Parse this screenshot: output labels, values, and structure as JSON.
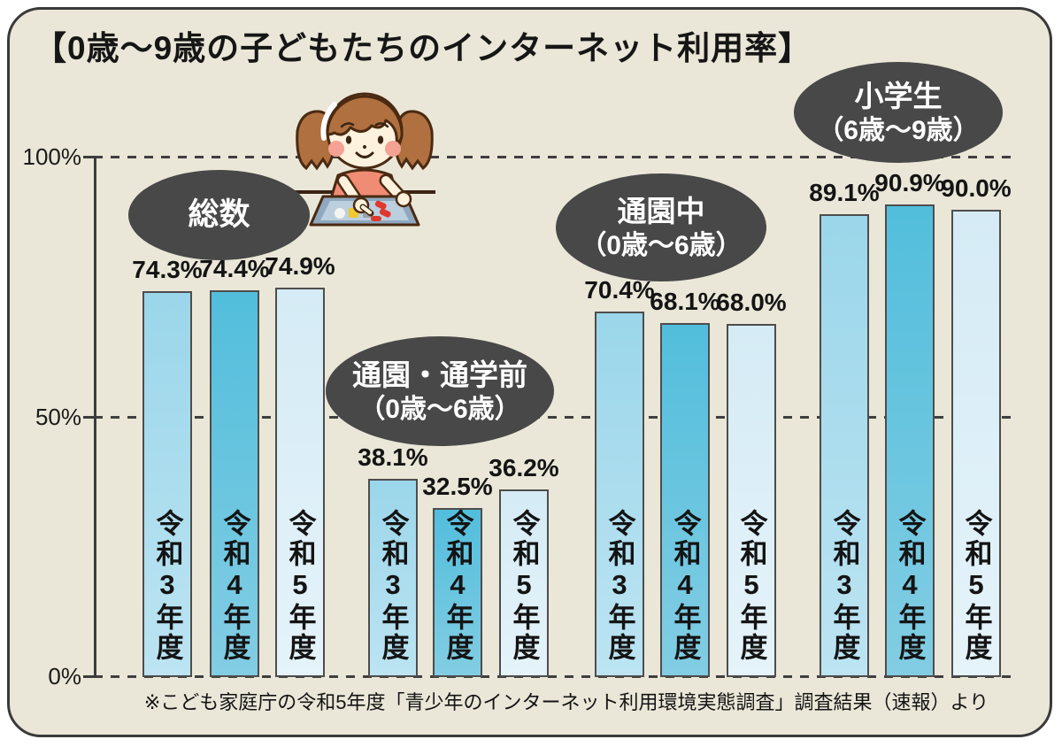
{
  "colors": {
    "page_background": "#ffffff",
    "panel_background": "#eae7d8",
    "panel_border": "#3a3a3a",
    "badge_background": "#484848",
    "badge_text": "#ffffff",
    "axis": "#3c3c3c",
    "bar_border": "#4d4d4d",
    "text": "#141414",
    "year_bar_top": [
      "#9bd6ea",
      "#52bedc",
      "#d5ebf5"
    ],
    "year_bar_bottom": [
      "#bce4f2",
      "#82cde3",
      "#e5f3fa"
    ]
  },
  "chart_data": {
    "type": "bar",
    "title": "【0歳〜9歳の子どもたちのインターネット利用率】",
    "categories": [
      "令和3年度",
      "令和4年度",
      "令和5年度"
    ],
    "groups": [
      {
        "label": "総数",
        "sublabel": "",
        "values": [
          74.3,
          74.4,
          74.9
        ],
        "value_labels": [
          "74.3%",
          "74.4%",
          "74.9%"
        ]
      },
      {
        "label": "通園・通学前",
        "sublabel": "（0歳〜6歳）",
        "values": [
          38.1,
          32.5,
          36.2
        ],
        "value_labels": [
          "38.1%",
          "32.5%",
          "36.2%"
        ]
      },
      {
        "label": "通園中",
        "sublabel": "（0歳〜6歳）",
        "values": [
          70.4,
          68.1,
          68.0
        ],
        "value_labels": [
          "70.4%",
          "68.1%",
          "68.0%"
        ]
      },
      {
        "label": "小学生",
        "sublabel": "（6歳〜9歳）",
        "values": [
          89.1,
          90.9,
          90.0
        ],
        "value_labels": [
          "89.1%",
          "90.9%",
          "90.0%"
        ]
      }
    ],
    "ylabel": "",
    "xlabel": "",
    "ylim": [
      0,
      100
    ],
    "yticks": [
      "100%",
      "50%",
      "0%"
    ],
    "grid": "horizontal dashed lines at 0%, 50%, 100%",
    "legend_position": "none",
    "illustration": "girl-using-tablet",
    "source_note": "※こども家庭庁の令和5年度「青少年のインターネット利用環境実態調査」調査結果（速報）より"
  }
}
